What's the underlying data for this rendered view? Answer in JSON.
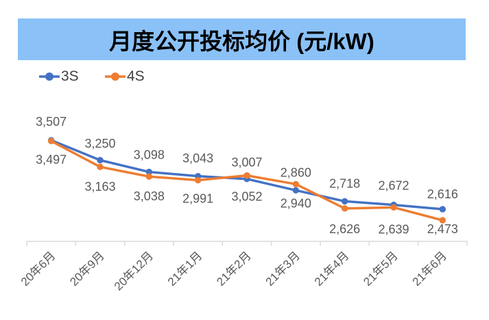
{
  "title": {
    "text": "月度公开投标均价 (元/kW)",
    "bar_color": "#8AC1F7",
    "text_color": "#000000"
  },
  "chart_data": {
    "type": "line",
    "title": "月度公开投标均价 (元/kW)",
    "categories": [
      "20年6月",
      "20年9月",
      "20年12月",
      "21年1月",
      "21年2月",
      "21年3月",
      "21年4月",
      "21年5月",
      "21年6月"
    ],
    "series": [
      {
        "name": "3S",
        "color": "#4472C4",
        "values": [
          3507,
          3250,
          3098,
          3043,
          3007,
          2860,
          2718,
          2672,
          2616
        ],
        "label_position": "above"
      },
      {
        "name": "4S",
        "color": "#ED7D31",
        "values": [
          3497,
          3163,
          3038,
          2991,
          3052,
          2940,
          2626,
          2639,
          2473
        ],
        "label_position": "below"
      }
    ],
    "ylim": [
      2200,
      3650
    ],
    "gridlines": false,
    "legend_position": "top-left",
    "axis_label_rotation": -45,
    "colors": {
      "axis_line": "#D9D9D9",
      "axis_label": "#595959",
      "data_label": "#595959"
    }
  }
}
